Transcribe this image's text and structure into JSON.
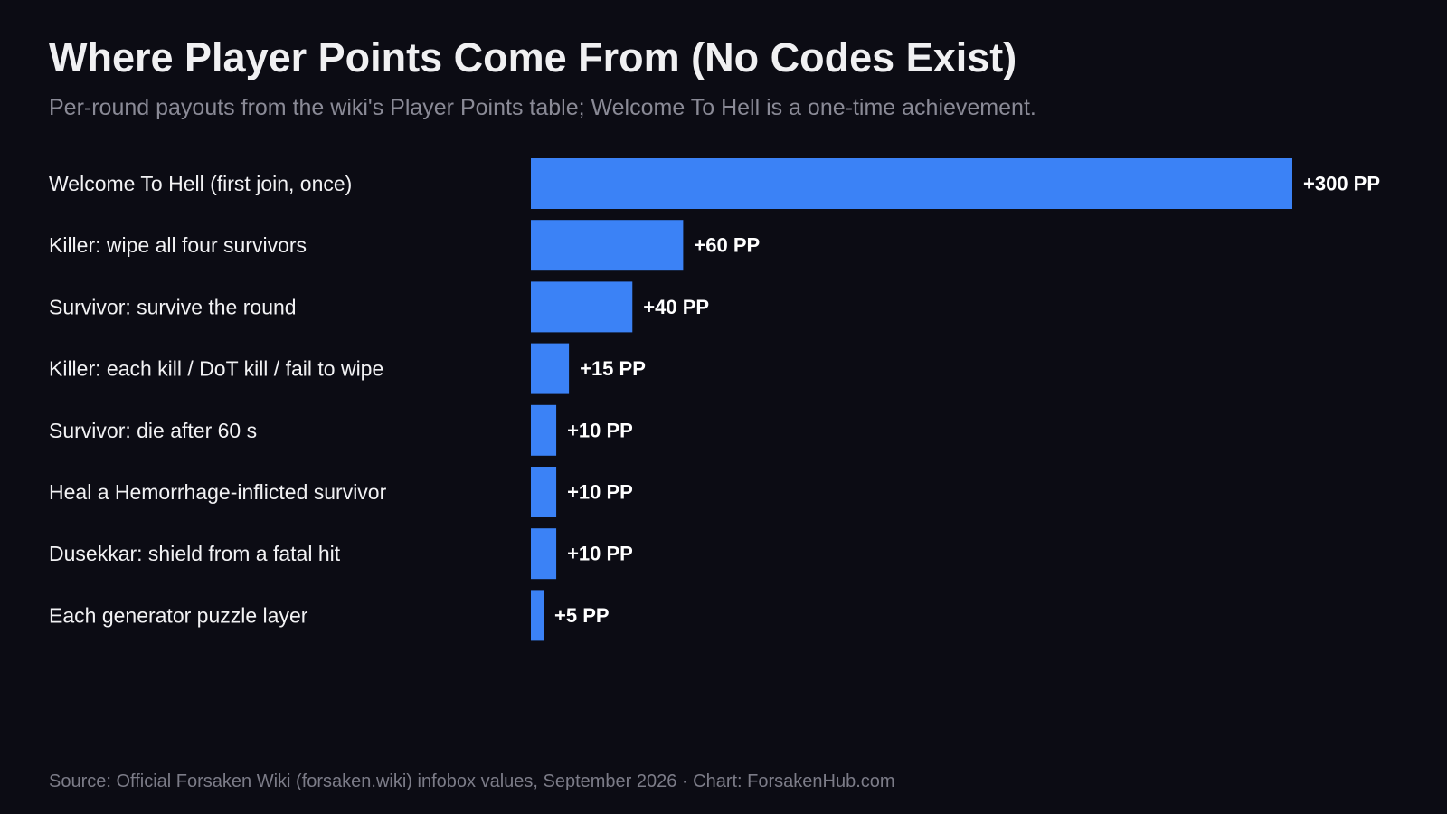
{
  "chart_data": {
    "type": "bar",
    "orientation": "horizontal",
    "title": "Where Player Points Come From (No Codes Exist)",
    "subtitle": "Per-round payouts from the wiki's Player Points table; Welcome To Hell is a one-time achievement.",
    "categories": [
      "Welcome To Hell (first join, once)",
      "Killer: wipe all four survivors",
      "Survivor: survive the round",
      "Killer: each kill / DoT kill / fail to wipe",
      "Survivor: die after 60 s",
      "Heal a Hemorrhage-inflicted survivor",
      "Dusekkar: shield from a fatal hit",
      "Each generator puzzle layer"
    ],
    "values": [
      300,
      60,
      40,
      15,
      10,
      10,
      10,
      5
    ],
    "value_labels": [
      "+300 PP",
      "+60 PP",
      "+40 PP",
      "+15 PP",
      "+10 PP",
      "+10 PP",
      "+10 PP",
      "+5 PP"
    ],
    "xlim": [
      0,
      300
    ],
    "grid": false,
    "legend": "none",
    "bar_color": "#3b82f6",
    "source": "Source: Official Forsaken Wiki (forsaken.wiki) infobox values, September 2026 · Chart: ForsakenHub.com"
  }
}
